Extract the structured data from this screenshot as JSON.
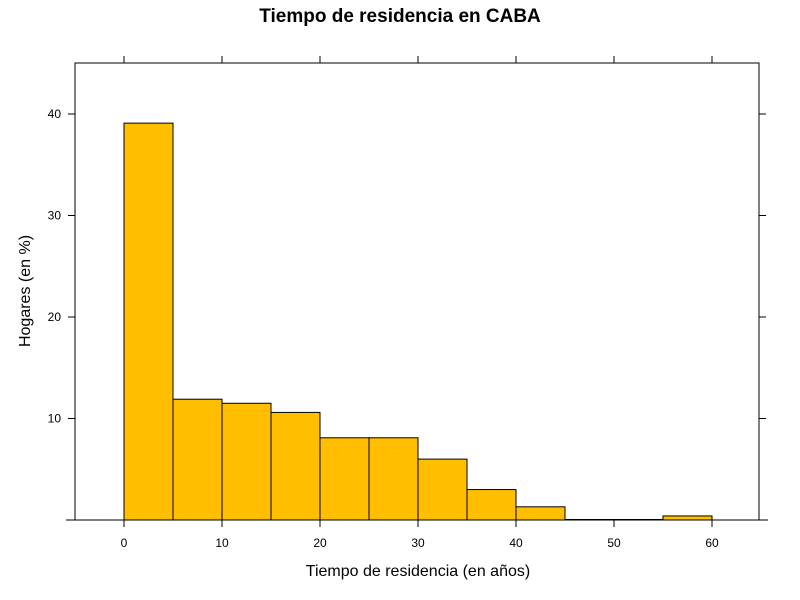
{
  "chart_data": {
    "type": "bar",
    "title": "Tiempo de residencia en CABA",
    "xlabel": "Tiempo de residencia (en años)",
    "ylabel": "Hogares (en %)",
    "bin_width": 5,
    "bins": [
      {
        "start": 0,
        "end": 5,
        "value": 39.1
      },
      {
        "start": 5,
        "end": 10,
        "value": 11.9
      },
      {
        "start": 10,
        "end": 15,
        "value": 11.5
      },
      {
        "start": 15,
        "end": 20,
        "value": 10.6
      },
      {
        "start": 20,
        "end": 25,
        "value": 8.1
      },
      {
        "start": 25,
        "end": 30,
        "value": 8.1
      },
      {
        "start": 30,
        "end": 35,
        "value": 6.0
      },
      {
        "start": 35,
        "end": 40,
        "value": 3.0
      },
      {
        "start": 40,
        "end": 45,
        "value": 1.3
      },
      {
        "start": 45,
        "end": 50,
        "value": 0.05
      },
      {
        "start": 50,
        "end": 55,
        "value": 0.05
      },
      {
        "start": 55,
        "end": 60,
        "value": 0.4
      }
    ],
    "xlim": [
      -5,
      65
    ],
    "ylim": [
      0,
      45
    ],
    "x_ticks": [
      "0",
      "10",
      "20",
      "30",
      "40",
      "50",
      "60"
    ],
    "y_ticks": [
      "10",
      "20",
      "30",
      "40"
    ],
    "bar_color": "#FFBF00",
    "grid": false
  }
}
